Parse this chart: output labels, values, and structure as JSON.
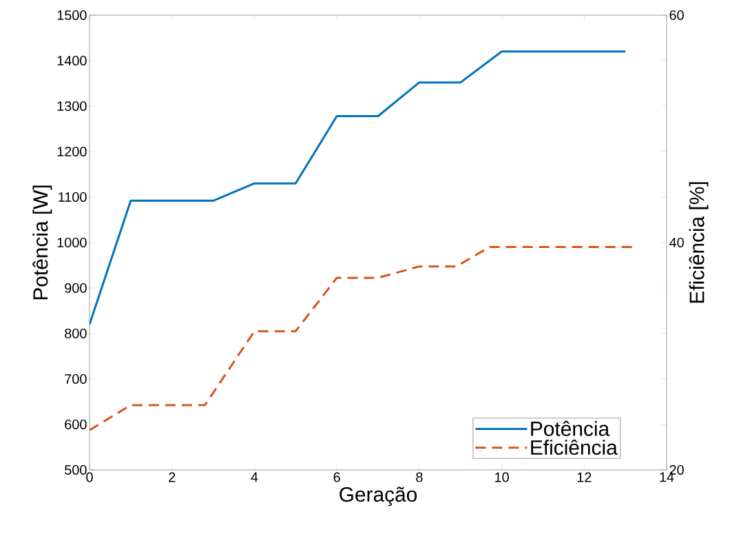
{
  "chart_data": {
    "type": "line",
    "xlabel": "Geração",
    "ylabel": "Potência [W]",
    "y2label": "Eficiência [%]",
    "xlim": [
      0,
      14
    ],
    "xticks": [
      0,
      2,
      4,
      6,
      8,
      10,
      12,
      14
    ],
    "ylim": [
      500,
      1500
    ],
    "yticks": [
      500,
      600,
      700,
      800,
      900,
      1000,
      1100,
      1200,
      1300,
      1400,
      1500
    ],
    "y2lim": [
      20,
      60
    ],
    "y2ticks": [
      20,
      {
        "value": 24,
        "label": null
      },
      {
        "value": 28,
        "label": null
      },
      {
        "value": 32,
        "label": null
      },
      {
        "value": 36,
        "label": null
      },
      40,
      {
        "value": 44,
        "label": null
      },
      {
        "value": 48,
        "label": null
      },
      {
        "value": 52,
        "label": null
      },
      {
        "value": 56,
        "label": null
      },
      60
    ],
    "legend": "bottom right",
    "grid": false,
    "series": [
      {
        "name": "Potência",
        "color": "#0072bd",
        "line_style": "solid",
        "x": [
          0,
          1,
          3,
          4,
          5,
          6,
          7,
          8,
          9,
          10,
          13
        ],
        "values": [
          820,
          1092,
          1092,
          1130,
          1130,
          1278,
          1278,
          1352,
          1352,
          1420,
          1420
        ]
      },
      {
        "name": "Eficiência",
        "color": "#d95319",
        "line_style": "dashed",
        "axis": "y2",
        "x": [
          0,
          1,
          2.8,
          4,
          5,
          6,
          7,
          8,
          8.9,
          9.7,
          13.2
        ],
        "values": [
          23.5,
          25.7,
          25.7,
          32.2,
          32.2,
          36.9,
          36.9,
          37.9,
          37.9,
          39.6,
          39.6
        ]
      }
    ]
  }
}
